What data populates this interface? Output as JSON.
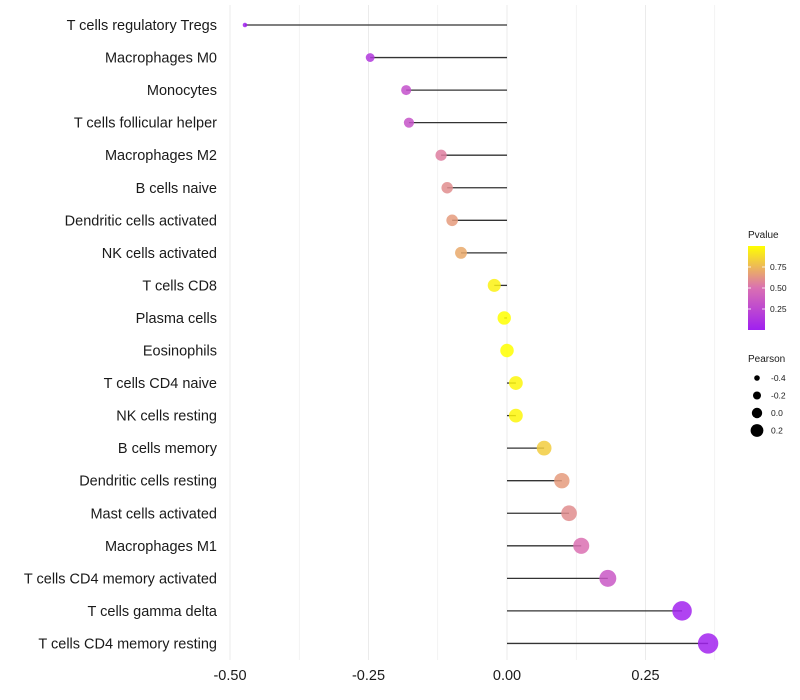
{
  "chart_data": {
    "type": "lollipop",
    "title": "",
    "xlabel": "",
    "ylabel": "",
    "xlim": [
      -0.5,
      0.4
    ],
    "x_ticks": [
      -0.5,
      -0.25,
      0.0,
      0.25
    ],
    "x_tick_labels": [
      "-0.50",
      "-0.25",
      "0.00",
      "0.25"
    ],
    "grid": true,
    "categories": [
      "T cells regulatory  Tregs",
      "Macrophages M0",
      "Monocytes",
      "T cells follicular helper",
      "Macrophages M2",
      "B cells naive",
      "Dendritic cells activated",
      "NK cells activated",
      "T cells CD8",
      "Plasma cells",
      "Eosinophils",
      "T cells CD4 naive",
      "NK cells resting",
      "B cells memory",
      "Dendritic cells resting",
      "Mast cells activated",
      "Macrophages M1",
      "T cells CD4 memory activated",
      "T cells gamma delta",
      "T cells CD4 memory resting"
    ],
    "values": [
      -0.473,
      -0.247,
      -0.182,
      -0.177,
      -0.119,
      -0.108,
      -0.099,
      -0.083,
      -0.023,
      -0.005,
      0.0,
      0.016,
      0.016,
      0.067,
      0.099,
      0.112,
      0.134,
      0.182,
      0.316,
      0.363
    ],
    "pvalues": [
      0.0,
      0.15,
      0.3,
      0.32,
      0.55,
      0.6,
      0.65,
      0.7,
      0.95,
      1.0,
      1.0,
      0.97,
      0.97,
      0.82,
      0.65,
      0.6,
      0.5,
      0.35,
      0.02,
      0.02
    ],
    "legend": {
      "color": {
        "title": "Pvalue",
        "ticks": [
          0.25,
          0.5,
          0.75
        ],
        "tick_labels": [
          "0.25",
          "0.50",
          "0.75"
        ],
        "range": [
          0.0,
          1.0
        ],
        "low_color": "#a020f0",
        "mid_color": "#da70b2",
        "high_color": "#ffff00"
      },
      "size": {
        "title": "Pearson",
        "values": [
          -0.4,
          -0.2,
          0.0,
          0.2
        ],
        "labels": [
          "-0.4",
          "-0.2",
          "0.0",
          "0.2"
        ]
      },
      "placement": "right"
    }
  }
}
